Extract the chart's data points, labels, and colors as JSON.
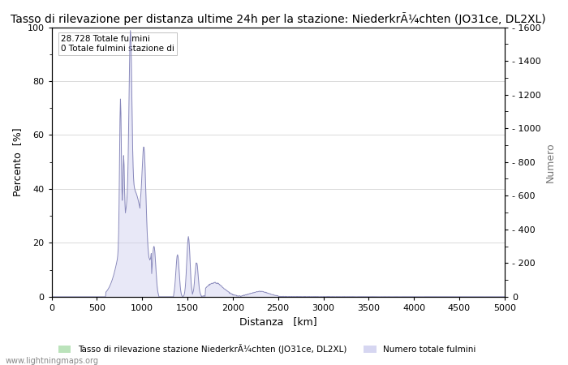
{
  "title": "Tasso di rilevazione per distanza ultime 24h per la stazione: NiederkrÃ¼chten (JO31ce, DL2XL)",
  "xlabel": "Distanza   [km]",
  "ylabel_left": "Percento  [%]",
  "ylabel_right": "Numero",
  "annotation_line1": "28.728 Totale fulmini",
  "annotation_line2": "0 Totale fulmini stazione di",
  "legend_label1": "Tasso di rilevazione stazione NiederkrÃ¼chten (JO31ce, DL2XL)",
  "legend_label2": "Numero totale fulmini",
  "watermark": "www.lightningmaps.org",
  "xlim": [
    0,
    5000
  ],
  "ylim_left": [
    0,
    100
  ],
  "ylim_right": [
    0,
    1600
  ],
  "xticks": [
    0,
    500,
    1000,
    1500,
    2000,
    2500,
    3000,
    3500,
    4000,
    4500,
    5000
  ],
  "yticks_left": [
    0,
    20,
    40,
    60,
    80,
    100
  ],
  "yticks_right": [
    0,
    200,
    400,
    600,
    800,
    1000,
    1200,
    1400,
    1600
  ],
  "bar_color": "#aaddaa",
  "line_color": "#8888bb",
  "line_fill_color": "#ccccee",
  "bg_color": "#ffffff",
  "grid_color": "#cccccc",
  "title_fontsize": 10,
  "tick_fontsize": 8,
  "label_fontsize": 9
}
